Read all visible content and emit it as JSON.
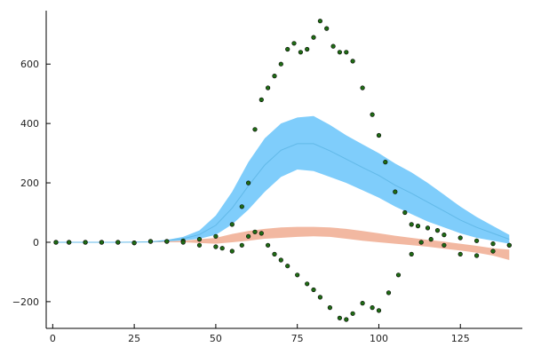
{
  "chart_data": {
    "type": "area",
    "title": "",
    "xlabel": "",
    "ylabel": "",
    "xlim": [
      -2,
      144
    ],
    "ylim": [
      -290,
      780
    ],
    "xticks": [
      0,
      25,
      50,
      75,
      100,
      125
    ],
    "xtick_labels": [
      "0",
      "25",
      "50",
      "75",
      "100",
      "125"
    ],
    "yticks": [
      -200,
      0,
      200,
      400,
      600
    ],
    "ytick_labels": [
      "−200",
      "0",
      "200",
      "400",
      "600"
    ],
    "grid": false,
    "legend": "none",
    "series": [
      {
        "kind": "band",
        "color": "#7fcdfb",
        "mean_line_color": "#62b9e8",
        "x": [
          1,
          20,
          30,
          35,
          40,
          45,
          50,
          55,
          60,
          65,
          70,
          75,
          80,
          85,
          90,
          95,
          100,
          105,
          110,
          115,
          120,
          125,
          130,
          135,
          140
        ],
        "upper": [
          0,
          0,
          3,
          8,
          18,
          40,
          90,
          170,
          270,
          350,
          400,
          420,
          425,
          395,
          360,
          330,
          300,
          265,
          235,
          200,
          160,
          120,
          85,
          55,
          25
        ],
        "lower": [
          0,
          0,
          0,
          3,
          6,
          12,
          25,
          60,
          110,
          170,
          220,
          245,
          240,
          220,
          200,
          175,
          150,
          120,
          95,
          70,
          50,
          30,
          15,
          5,
          -5
        ],
        "mean": [
          0,
          0,
          1,
          5,
          12,
          26,
          57,
          115,
          190,
          260,
          310,
          332,
          332,
          308,
          280,
          252,
          225,
          192,
          165,
          135,
          105,
          75,
          50,
          30,
          10
        ]
      },
      {
        "kind": "band",
        "color": "#f2b8a1",
        "x": [
          1,
          30,
          40,
          50,
          55,
          60,
          65,
          70,
          75,
          80,
          85,
          90,
          95,
          100,
          105,
          110,
          115,
          120,
          125,
          130,
          135,
          140
        ],
        "upper": [
          0,
          0,
          5,
          15,
          28,
          38,
          45,
          50,
          52,
          52,
          50,
          45,
          38,
          30,
          22,
          15,
          8,
          2,
          -5,
          -12,
          -20,
          -25
        ],
        "lower": [
          0,
          0,
          0,
          -5,
          0,
          5,
          12,
          15,
          18,
          20,
          18,
          12,
          5,
          0,
          -5,
          -10,
          -15,
          -22,
          -28,
          -35,
          -45,
          -60
        ]
      },
      {
        "kind": "dots",
        "color": "#1f6b14",
        "edge_color": "#000000",
        "x": [
          1,
          5,
          10,
          15,
          20,
          25,
          30,
          35,
          40,
          45,
          50,
          55,
          58,
          60,
          62,
          64,
          66,
          68,
          70,
          72,
          74,
          76,
          78,
          80,
          82,
          84,
          86,
          88,
          90,
          92,
          95,
          98,
          100,
          102,
          105,
          108,
          110,
          112,
          115,
          118,
          120,
          125,
          130,
          135,
          140
        ],
        "y": [
          0,
          0,
          0,
          0,
          0,
          -2,
          3,
          3,
          5,
          10,
          20,
          60,
          120,
          200,
          380,
          480,
          520,
          560,
          600,
          650,
          670,
          640,
          650,
          690,
          745,
          720,
          660,
          640,
          640,
          610,
          520,
          430,
          360,
          270,
          170,
          100,
          60,
          55,
          48,
          40,
          25,
          15,
          5,
          -5,
          -10
        ]
      },
      {
        "kind": "dots",
        "color": "#1f6b14",
        "edge_color": "#000000",
        "x": [
          1,
          5,
          10,
          15,
          20,
          25,
          30,
          35,
          40,
          45,
          50,
          52,
          55,
          58,
          60,
          62,
          64,
          66,
          68,
          70,
          72,
          75,
          78,
          80,
          82,
          85,
          88,
          90,
          92,
          95,
          98,
          100,
          103,
          106,
          110,
          113,
          116,
          120,
          125,
          130,
          135,
          140
        ],
        "y": [
          0,
          0,
          0,
          0,
          0,
          -2,
          3,
          3,
          0,
          -10,
          -15,
          -20,
          -30,
          -10,
          20,
          35,
          30,
          -10,
          -40,
          -60,
          -80,
          -110,
          -140,
          -160,
          -185,
          -220,
          -255,
          -260,
          -240,
          -205,
          -220,
          -230,
          -170,
          -110,
          -40,
          0,
          10,
          -10,
          -40,
          -45,
          -30,
          -10
        ]
      }
    ]
  }
}
